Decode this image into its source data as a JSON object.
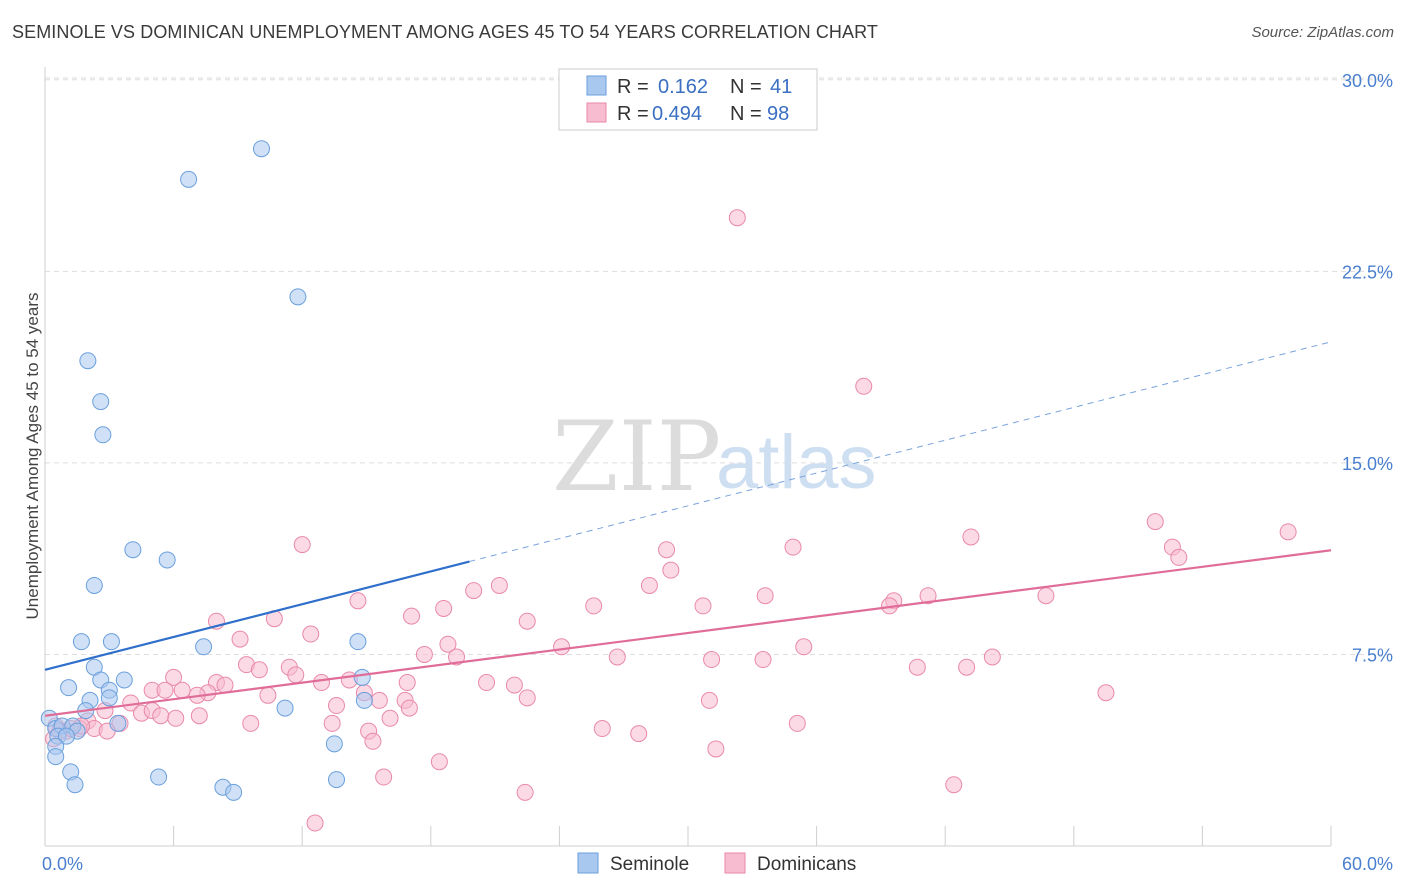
{
  "title": "SEMINOLE VS DOMINICAN UNEMPLOYMENT AMONG AGES 45 TO 54 YEARS CORRELATION CHART",
  "source": "Source: ZipAtlas.com",
  "watermark": {
    "zip": "ZIP",
    "atlas": "atlas"
  },
  "colors": {
    "seminole_fill": "#a9c8f0",
    "seminole_stroke": "#6a9fdc",
    "seminole_line": "#2f6fcb",
    "dominican_fill": "#f7bcd0",
    "dominican_stroke": "#e989aa",
    "dominican_line": "#e06d98",
    "tick_text": "#4a7fcf",
    "grid": "#dddddd"
  },
  "legend": {
    "r_label": "R =",
    "n_label": "N =",
    "rows": [
      {
        "series": "Seminole",
        "r": "0.162",
        "n": "41"
      },
      {
        "series": "Dominicans",
        "r": "0.494",
        "n": "98"
      }
    ]
  },
  "chart_data": {
    "type": "scatter",
    "title": "SEMINOLE VS DOMINICAN UNEMPLOYMENT AMONG AGES 45 TO 54 YEARS CORRELATION CHART",
    "xlabel": "",
    "ylabel": "Unemployment Among Ages 45 to 54 years",
    "xlim": [
      0,
      60
    ],
    "ylim": [
      0,
      30.5
    ],
    "x_tick_labels": [
      "0.0%",
      "60.0%"
    ],
    "y_ticks": [
      7.5,
      15.0,
      22.5,
      30.0
    ],
    "y_tick_labels": [
      "7.5%",
      "15.0%",
      "22.5%",
      "30.0%"
    ],
    "grid": true,
    "series": [
      {
        "name": "Seminole",
        "points": [
          [
            10.1,
            27.3
          ],
          [
            6.7,
            26.1
          ],
          [
            11.8,
            21.5
          ],
          [
            2.0,
            19.0
          ],
          [
            2.6,
            17.4
          ],
          [
            2.7,
            16.1
          ],
          [
            4.1,
            11.6
          ],
          [
            5.7,
            11.2
          ],
          [
            2.3,
            10.2
          ],
          [
            1.7,
            8.0
          ],
          [
            3.1,
            8.0
          ],
          [
            7.4,
            7.8
          ],
          [
            14.6,
            8.0
          ],
          [
            2.3,
            7.0
          ],
          [
            14.8,
            6.6
          ],
          [
            1.1,
            6.2
          ],
          [
            3.7,
            6.5
          ],
          [
            2.6,
            6.5
          ],
          [
            3.0,
            6.1
          ],
          [
            2.1,
            5.7
          ],
          [
            3.0,
            5.8
          ],
          [
            1.9,
            5.3
          ],
          [
            11.2,
            5.4
          ],
          [
            14.9,
            5.7
          ],
          [
            3.4,
            4.8
          ],
          [
            0.2,
            5.0
          ],
          [
            0.5,
            4.6
          ],
          [
            0.8,
            4.7
          ],
          [
            1.3,
            4.7
          ],
          [
            1.5,
            4.5
          ],
          [
            0.6,
            4.3
          ],
          [
            1.0,
            4.3
          ],
          [
            0.5,
            3.9
          ],
          [
            13.5,
            4.0
          ],
          [
            0.5,
            3.5
          ],
          [
            1.2,
            2.9
          ],
          [
            5.3,
            2.7
          ],
          [
            13.6,
            2.6
          ],
          [
            1.4,
            2.4
          ],
          [
            8.3,
            2.3
          ],
          [
            8.8,
            2.1
          ]
        ]
      },
      {
        "name": "Dominicans",
        "points": [
          [
            32.3,
            24.6
          ],
          [
            38.2,
            18.0
          ],
          [
            12.0,
            11.8
          ],
          [
            51.8,
            12.7
          ],
          [
            58.0,
            12.3
          ],
          [
            43.2,
            12.1
          ],
          [
            29.0,
            11.6
          ],
          [
            34.9,
            11.7
          ],
          [
            52.6,
            11.7
          ],
          [
            52.9,
            11.3
          ],
          [
            29.2,
            10.8
          ],
          [
            21.2,
            10.2
          ],
          [
            20.0,
            10.0
          ],
          [
            28.2,
            10.2
          ],
          [
            33.6,
            9.8
          ],
          [
            39.6,
            9.6
          ],
          [
            41.2,
            9.8
          ],
          [
            46.7,
            9.8
          ],
          [
            14.6,
            9.6
          ],
          [
            18.6,
            9.3
          ],
          [
            25.6,
            9.4
          ],
          [
            30.7,
            9.4
          ],
          [
            39.4,
            9.4
          ],
          [
            17.1,
            9.0
          ],
          [
            8.0,
            8.8
          ],
          [
            10.7,
            8.9
          ],
          [
            22.5,
            8.8
          ],
          [
            12.4,
            8.3
          ],
          [
            9.1,
            8.1
          ],
          [
            18.8,
            7.9
          ],
          [
            24.1,
            7.8
          ],
          [
            35.4,
            7.8
          ],
          [
            17.7,
            7.5
          ],
          [
            19.2,
            7.4
          ],
          [
            26.7,
            7.4
          ],
          [
            31.1,
            7.3
          ],
          [
            33.5,
            7.3
          ],
          [
            44.2,
            7.4
          ],
          [
            9.4,
            7.1
          ],
          [
            11.4,
            7.0
          ],
          [
            10.0,
            6.9
          ],
          [
            40.7,
            7.0
          ],
          [
            43.0,
            7.0
          ],
          [
            11.7,
            6.7
          ],
          [
            6.0,
            6.6
          ],
          [
            12.9,
            6.4
          ],
          [
            14.2,
            6.5
          ],
          [
            16.9,
            6.4
          ],
          [
            20.6,
            6.4
          ],
          [
            8.0,
            6.4
          ],
          [
            5.0,
            6.1
          ],
          [
            5.6,
            6.1
          ],
          [
            6.4,
            6.1
          ],
          [
            7.6,
            6.0
          ],
          [
            8.4,
            6.3
          ],
          [
            14.9,
            6.0
          ],
          [
            21.9,
            6.3
          ],
          [
            7.1,
            5.9
          ],
          [
            10.4,
            5.9
          ],
          [
            15.6,
            5.7
          ],
          [
            16.8,
            5.7
          ],
          [
            22.5,
            5.8
          ],
          [
            31.0,
            5.7
          ],
          [
            49.5,
            6.0
          ],
          [
            4.0,
            5.6
          ],
          [
            13.6,
            5.5
          ],
          [
            4.5,
            5.2
          ],
          [
            5.0,
            5.3
          ],
          [
            5.4,
            5.1
          ],
          [
            7.2,
            5.1
          ],
          [
            2.8,
            5.3
          ],
          [
            6.1,
            5.0
          ],
          [
            16.1,
            5.0
          ],
          [
            17.0,
            5.4
          ],
          [
            9.6,
            4.8
          ],
          [
            13.4,
            4.8
          ],
          [
            26.0,
            4.6
          ],
          [
            35.1,
            4.8
          ],
          [
            2.0,
            4.9
          ],
          [
            3.5,
            4.8
          ],
          [
            0.5,
            4.7
          ],
          [
            1.6,
            4.6
          ],
          [
            2.3,
            4.6
          ],
          [
            2.9,
            4.5
          ],
          [
            1.0,
            4.5
          ],
          [
            1.7,
            4.7
          ],
          [
            0.7,
            4.5
          ],
          [
            15.1,
            4.5
          ],
          [
            27.7,
            4.4
          ],
          [
            0.4,
            4.2
          ],
          [
            15.3,
            4.1
          ],
          [
            31.3,
            3.8
          ],
          [
            18.4,
            3.3
          ],
          [
            15.8,
            2.7
          ],
          [
            42.4,
            2.4
          ],
          [
            22.4,
            2.1
          ],
          [
            12.6,
            0.9
          ],
          [
            1.2,
            4.6
          ]
        ]
      }
    ],
    "trend_lines": [
      {
        "series": "Seminole",
        "solid_x": [
          0,
          19.8
        ],
        "dashed_x": [
          19.8,
          60
        ],
        "y_at_x0": 6.9,
        "slope": 0.214
      },
      {
        "series": "Dominicans",
        "x": [
          0,
          60
        ],
        "y_at_x0": 5.1,
        "slope": 0.108
      }
    ]
  }
}
